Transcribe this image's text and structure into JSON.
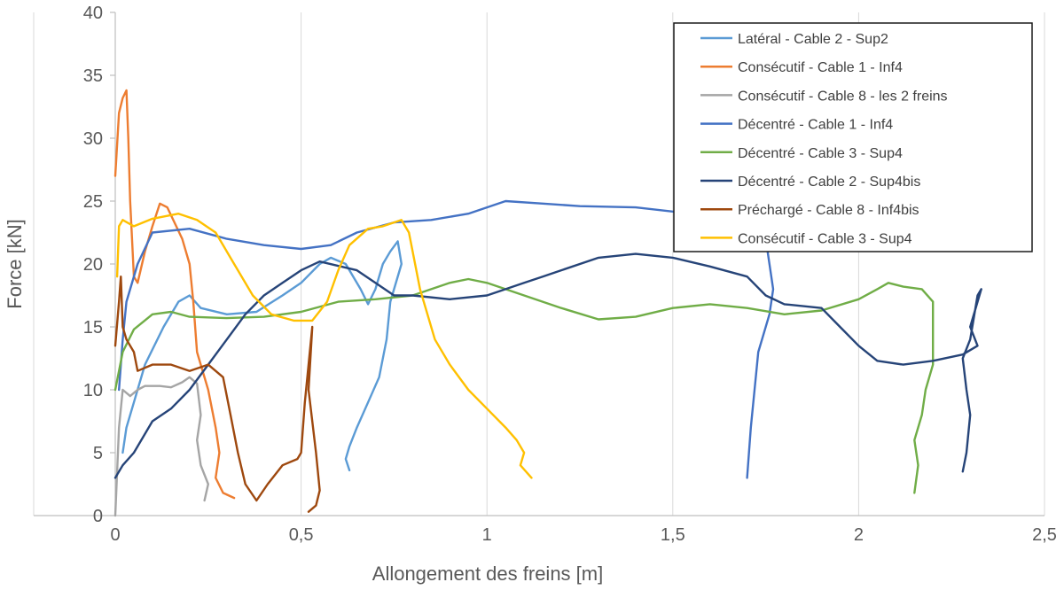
{
  "chart_data": {
    "type": "line",
    "xlabel": "Allongement des freins [m]",
    "ylabel": "Force [kN]",
    "xlim": [
      0,
      2.5
    ],
    "ylim": [
      0,
      40
    ],
    "x_ticks": [
      "0",
      "0,5",
      "1",
      "1,5",
      "2",
      "2,5"
    ],
    "y_ticks": [
      "0",
      "5",
      "10",
      "15",
      "20",
      "25",
      "30",
      "35",
      "40"
    ],
    "grid": "vertical",
    "legend_position": "top-right",
    "series": [
      {
        "name": "Latéral - Cable 2 - Sup2",
        "color": "#5b9bd5",
        "points": [
          [
            0.02,
            5
          ],
          [
            0.03,
            7
          ],
          [
            0.05,
            9
          ],
          [
            0.08,
            12
          ],
          [
            0.13,
            15
          ],
          [
            0.17,
            17
          ],
          [
            0.2,
            17.5
          ],
          [
            0.23,
            16.5
          ],
          [
            0.3,
            16
          ],
          [
            0.38,
            16.2
          ],
          [
            0.45,
            17.5
          ],
          [
            0.5,
            18.5
          ],
          [
            0.55,
            20
          ],
          [
            0.58,
            20.5
          ],
          [
            0.62,
            20
          ],
          [
            0.66,
            18
          ],
          [
            0.68,
            16.8
          ],
          [
            0.7,
            18
          ],
          [
            0.72,
            20
          ],
          [
            0.74,
            21
          ],
          [
            0.76,
            21.8
          ],
          [
            0.77,
            20
          ],
          [
            0.74,
            17
          ],
          [
            0.73,
            14
          ],
          [
            0.71,
            11
          ],
          [
            0.68,
            9
          ],
          [
            0.65,
            7
          ],
          [
            0.63,
            5.5
          ],
          [
            0.62,
            4.5
          ],
          [
            0.63,
            3.6
          ]
        ]
      },
      {
        "name": "Consécutif - Cable 1 - Inf4",
        "color": "#ed7d31",
        "points": [
          [
            0.0,
            27
          ],
          [
            0.01,
            32
          ],
          [
            0.02,
            33.2
          ],
          [
            0.03,
            33.8
          ],
          [
            0.035,
            30
          ],
          [
            0.04,
            25
          ],
          [
            0.05,
            19
          ],
          [
            0.06,
            18.5
          ],
          [
            0.08,
            21
          ],
          [
            0.1,
            23
          ],
          [
            0.12,
            24.8
          ],
          [
            0.14,
            24.5
          ],
          [
            0.18,
            22
          ],
          [
            0.2,
            20
          ],
          [
            0.21,
            17
          ],
          [
            0.22,
            13
          ],
          [
            0.25,
            10
          ],
          [
            0.27,
            7
          ],
          [
            0.28,
            5
          ],
          [
            0.27,
            3
          ],
          [
            0.29,
            1.8
          ],
          [
            0.32,
            1.4
          ]
        ]
      },
      {
        "name": "Consécutif - Cable 8 - les 2 freins",
        "color": "#a5a5a5",
        "points": [
          [
            0.0,
            0
          ],
          [
            0.01,
            7
          ],
          [
            0.02,
            10
          ],
          [
            0.04,
            9.5
          ],
          [
            0.06,
            10
          ],
          [
            0.08,
            10.3
          ],
          [
            0.12,
            10.3
          ],
          [
            0.15,
            10.2
          ],
          [
            0.18,
            10.6
          ],
          [
            0.2,
            11
          ],
          [
            0.22,
            10.5
          ],
          [
            0.23,
            8
          ],
          [
            0.22,
            6
          ],
          [
            0.23,
            4
          ],
          [
            0.25,
            2.5
          ],
          [
            0.24,
            1.2
          ]
        ]
      },
      {
        "name": "Décentré - Cable 1 - Inf4",
        "color": "#4472c4",
        "points": [
          [
            0.01,
            10
          ],
          [
            0.02,
            14
          ],
          [
            0.03,
            17
          ],
          [
            0.06,
            20
          ],
          [
            0.1,
            22.5
          ],
          [
            0.2,
            22.8
          ],
          [
            0.3,
            22
          ],
          [
            0.4,
            21.5
          ],
          [
            0.5,
            21.2
          ],
          [
            0.58,
            21.5
          ],
          [
            0.65,
            22.5
          ],
          [
            0.75,
            23.3
          ],
          [
            0.85,
            23.5
          ],
          [
            0.95,
            24
          ],
          [
            1.0,
            24.5
          ],
          [
            1.05,
            25
          ],
          [
            1.15,
            24.8
          ],
          [
            1.25,
            24.6
          ],
          [
            1.4,
            24.5
          ],
          [
            1.55,
            24
          ],
          [
            1.65,
            23.3
          ],
          [
            1.75,
            22
          ],
          [
            1.76,
            20
          ],
          [
            1.77,
            18
          ],
          [
            1.76,
            16
          ],
          [
            1.73,
            13
          ],
          [
            1.72,
            10
          ],
          [
            1.71,
            7
          ],
          [
            1.7,
            3
          ]
        ]
      },
      {
        "name": "Décentré - Cable 3 - Sup4",
        "color": "#70ad47",
        "points": [
          [
            0.0,
            10
          ],
          [
            0.02,
            13
          ],
          [
            0.05,
            14.8
          ],
          [
            0.1,
            16
          ],
          [
            0.15,
            16.2
          ],
          [
            0.2,
            15.8
          ],
          [
            0.3,
            15.7
          ],
          [
            0.4,
            15.8
          ],
          [
            0.5,
            16.2
          ],
          [
            0.6,
            17
          ],
          [
            0.7,
            17.2
          ],
          [
            0.8,
            17.5
          ],
          [
            0.9,
            18.5
          ],
          [
            0.95,
            18.8
          ],
          [
            1.0,
            18.5
          ],
          [
            1.1,
            17.5
          ],
          [
            1.2,
            16.5
          ],
          [
            1.3,
            15.6
          ],
          [
            1.4,
            15.8
          ],
          [
            1.5,
            16.5
          ],
          [
            1.6,
            16.8
          ],
          [
            1.7,
            16.5
          ],
          [
            1.8,
            16
          ],
          [
            1.9,
            16.3
          ],
          [
            2.0,
            17.2
          ],
          [
            2.05,
            18
          ],
          [
            2.08,
            18.5
          ],
          [
            2.12,
            18.2
          ],
          [
            2.17,
            18
          ],
          [
            2.2,
            17
          ],
          [
            2.2,
            12
          ],
          [
            2.18,
            10
          ],
          [
            2.17,
            8
          ],
          [
            2.15,
            6
          ],
          [
            2.16,
            4
          ],
          [
            2.15,
            1.8
          ]
        ]
      },
      {
        "name": "Décentré - Cable 2 - Sup4bis",
        "color": "#264478",
        "points": [
          [
            0.0,
            3
          ],
          [
            0.02,
            4
          ],
          [
            0.05,
            5
          ],
          [
            0.1,
            7.5
          ],
          [
            0.15,
            8.5
          ],
          [
            0.2,
            10
          ],
          [
            0.25,
            12
          ],
          [
            0.3,
            14
          ],
          [
            0.35,
            16
          ],
          [
            0.4,
            17.5
          ],
          [
            0.45,
            18.5
          ],
          [
            0.5,
            19.5
          ],
          [
            0.55,
            20.2
          ],
          [
            0.65,
            19.5
          ],
          [
            0.7,
            18.5
          ],
          [
            0.75,
            17.5
          ],
          [
            0.8,
            17.5
          ],
          [
            0.9,
            17.2
          ],
          [
            1.0,
            17.5
          ],
          [
            1.05,
            18
          ],
          [
            1.1,
            18.5
          ],
          [
            1.15,
            19
          ],
          [
            1.2,
            19.5
          ],
          [
            1.3,
            20.5
          ],
          [
            1.4,
            20.8
          ],
          [
            1.5,
            20.5
          ],
          [
            1.6,
            19.8
          ],
          [
            1.7,
            19
          ],
          [
            1.75,
            17.5
          ],
          [
            1.8,
            16.8
          ],
          [
            1.9,
            16.5
          ],
          [
            1.95,
            15
          ],
          [
            2.0,
            13.5
          ],
          [
            2.05,
            12.3
          ],
          [
            2.12,
            12
          ],
          [
            2.2,
            12.3
          ],
          [
            2.28,
            12.8
          ],
          [
            2.32,
            13.5
          ],
          [
            2.3,
            15
          ],
          [
            2.33,
            18
          ],
          [
            2.32,
            17.5
          ],
          [
            2.3,
            14
          ],
          [
            2.28,
            12.5
          ],
          [
            2.29,
            10
          ],
          [
            2.3,
            8
          ],
          [
            2.29,
            5
          ],
          [
            2.28,
            3.5
          ]
        ]
      },
      {
        "name": "Préchargé - Cable 8 - Inf4bis",
        "color": "#9e480e",
        "points": [
          [
            0.0,
            13.5
          ],
          [
            0.01,
            17
          ],
          [
            0.015,
            19
          ],
          [
            0.02,
            15
          ],
          [
            0.03,
            14
          ],
          [
            0.05,
            13
          ],
          [
            0.06,
            11.5
          ],
          [
            0.1,
            12
          ],
          [
            0.15,
            12
          ],
          [
            0.2,
            11.5
          ],
          [
            0.25,
            12
          ],
          [
            0.29,
            11
          ],
          [
            0.31,
            8
          ],
          [
            0.33,
            5
          ],
          [
            0.35,
            2.5
          ],
          [
            0.38,
            1.2
          ],
          [
            0.41,
            2.5
          ],
          [
            0.45,
            4
          ],
          [
            0.49,
            4.5
          ],
          [
            0.5,
            5
          ],
          [
            0.51,
            9
          ],
          [
            0.52,
            12
          ],
          [
            0.53,
            15
          ],
          [
            0.52,
            10
          ],
          [
            0.54,
            5
          ],
          [
            0.55,
            2
          ],
          [
            0.54,
            0.8
          ],
          [
            0.52,
            0.3
          ]
        ]
      },
      {
        "name": "Consécutif - Cable 3 - Sup4",
        "color": "#ffc000",
        "points": [
          [
            0.005,
            19
          ],
          [
            0.01,
            23
          ],
          [
            0.02,
            23.5
          ],
          [
            0.05,
            23
          ],
          [
            0.1,
            23.6
          ],
          [
            0.17,
            24
          ],
          [
            0.22,
            23.5
          ],
          [
            0.27,
            22.5
          ],
          [
            0.32,
            20
          ],
          [
            0.37,
            17.5
          ],
          [
            0.42,
            16
          ],
          [
            0.48,
            15.5
          ],
          [
            0.53,
            15.5
          ],
          [
            0.57,
            17
          ],
          [
            0.6,
            19.5
          ],
          [
            0.63,
            21.5
          ],
          [
            0.68,
            22.8
          ],
          [
            0.72,
            23
          ],
          [
            0.77,
            23.5
          ],
          [
            0.79,
            22.5
          ],
          [
            0.82,
            18
          ],
          [
            0.86,
            14
          ],
          [
            0.9,
            12
          ],
          [
            0.95,
            10
          ],
          [
            1.0,
            8.5
          ],
          [
            1.05,
            7
          ],
          [
            1.08,
            6
          ],
          [
            1.1,
            5
          ],
          [
            1.09,
            4
          ],
          [
            1.12,
            3
          ]
        ]
      }
    ]
  }
}
